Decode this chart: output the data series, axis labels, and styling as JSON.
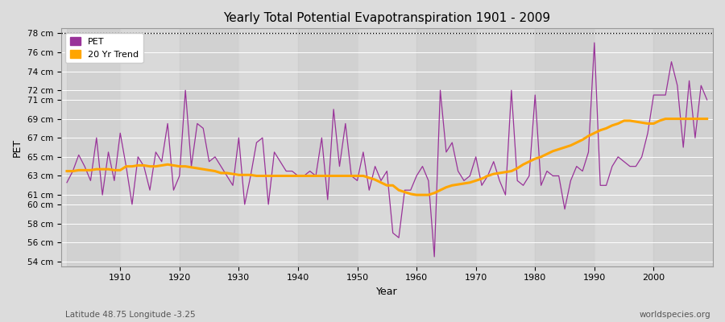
{
  "title": "Yearly Total Potential Evapotranspiration 1901 - 2009",
  "xlabel": "Year",
  "ylabel": "PET",
  "footer_left": "Latitude 48.75 Longitude -3.25",
  "footer_right": "worldspecies.org",
  "ylim": [
    53.5,
    78.5
  ],
  "pet_color": "#993399",
  "trend_color": "#FFA500",
  "bg_color": "#DCDCDC",
  "plot_bg": "#DCDCDC",
  "dotted_line_y": 78,
  "years": [
    1901,
    1902,
    1903,
    1904,
    1905,
    1906,
    1907,
    1908,
    1909,
    1910,
    1911,
    1912,
    1913,
    1914,
    1915,
    1916,
    1917,
    1918,
    1919,
    1920,
    1921,
    1922,
    1923,
    1924,
    1925,
    1926,
    1927,
    1928,
    1929,
    1930,
    1931,
    1932,
    1933,
    1934,
    1935,
    1936,
    1937,
    1938,
    1939,
    1940,
    1941,
    1942,
    1943,
    1944,
    1945,
    1946,
    1947,
    1948,
    1949,
    1950,
    1951,
    1952,
    1953,
    1954,
    1955,
    1956,
    1957,
    1958,
    1959,
    1960,
    1961,
    1962,
    1963,
    1964,
    1965,
    1966,
    1967,
    1968,
    1969,
    1970,
    1971,
    1972,
    1973,
    1974,
    1975,
    1976,
    1977,
    1978,
    1979,
    1980,
    1981,
    1982,
    1983,
    1984,
    1985,
    1986,
    1987,
    1988,
    1989,
    1990,
    1991,
    1992,
    1993,
    1994,
    1995,
    1996,
    1997,
    1998,
    1999,
    2000,
    2001,
    2002,
    2003,
    2004,
    2005,
    2006,
    2007,
    2008,
    2009
  ],
  "pet": [
    62.3,
    63.5,
    65.2,
    64.0,
    62.5,
    67.0,
    61.0,
    65.5,
    62.5,
    67.5,
    64.0,
    60.0,
    65.0,
    64.0,
    61.5,
    65.5,
    64.5,
    68.5,
    61.5,
    63.0,
    72.0,
    64.0,
    68.5,
    68.0,
    64.5,
    65.0,
    64.0,
    63.0,
    62.0,
    67.0,
    60.0,
    63.0,
    66.5,
    67.0,
    60.0,
    65.5,
    64.5,
    63.5,
    63.5,
    63.0,
    63.0,
    63.5,
    63.0,
    67.0,
    60.5,
    70.0,
    64.0,
    68.5,
    63.0,
    62.5,
    65.5,
    61.5,
    64.0,
    62.5,
    63.5,
    57.0,
    56.5,
    61.5,
    61.5,
    63.0,
    64.0,
    62.5,
    54.5,
    72.0,
    65.5,
    66.5,
    63.5,
    62.5,
    63.0,
    65.0,
    62.0,
    63.0,
    64.5,
    62.5,
    61.0,
    72.0,
    62.5,
    62.0,
    63.0,
    71.5,
    62.0,
    63.5,
    63.0,
    63.0,
    59.5,
    62.5,
    64.0,
    63.5,
    65.5,
    77.0,
    62.0,
    62.0,
    64.0,
    65.0,
    64.5,
    64.0,
    64.0,
    65.0,
    67.5,
    71.5,
    71.5,
    71.5,
    75.0,
    72.5,
    66.0,
    73.0,
    67.0,
    72.5,
    71.0
  ],
  "trend": [
    63.5,
    63.5,
    63.6,
    63.6,
    63.6,
    63.7,
    63.7,
    63.7,
    63.6,
    63.6,
    64.0,
    64.0,
    64.1,
    64.1,
    64.0,
    64.0,
    64.1,
    64.2,
    64.1,
    64.0,
    64.0,
    63.9,
    63.8,
    63.7,
    63.6,
    63.5,
    63.3,
    63.3,
    63.2,
    63.1,
    63.1,
    63.1,
    63.0,
    63.0,
    63.0,
    63.0,
    63.0,
    63.0,
    63.0,
    63.0,
    63.0,
    63.0,
    63.0,
    63.0,
    63.0,
    63.0,
    63.0,
    63.0,
    63.0,
    63.0,
    63.0,
    62.8,
    62.6,
    62.3,
    62.0,
    62.0,
    61.5,
    61.3,
    61.1,
    61.0,
    61.0,
    61.0,
    61.2,
    61.5,
    61.8,
    62.0,
    62.1,
    62.2,
    62.3,
    62.5,
    62.7,
    63.0,
    63.2,
    63.3,
    63.4,
    63.5,
    63.8,
    64.2,
    64.5,
    64.8,
    65.0,
    65.3,
    65.6,
    65.8,
    66.0,
    66.2,
    66.5,
    66.8,
    67.2,
    67.5,
    67.8,
    68.0,
    68.3,
    68.5,
    68.8,
    68.8,
    68.7,
    68.6,
    68.5,
    68.5,
    68.8,
    69.0,
    69.0,
    69.0,
    69.0,
    69.0,
    69.0,
    69.0,
    69.0
  ],
  "ytick_values": [
    54,
    56,
    58,
    60,
    61,
    63,
    65,
    67,
    69,
    71,
    72,
    74,
    76,
    78
  ],
  "ytick_labels": [
    "54 cm",
    "56 cm",
    "58 cm",
    "60 cm",
    "61 cm",
    "63 cm",
    "65 cm",
    "67 cm",
    "69 cm",
    "71 cm",
    "72 cm",
    "74 cm",
    "76 cm",
    "78 cm"
  ],
  "xtick_vals": [
    1910,
    1920,
    1930,
    1940,
    1950,
    1960,
    1970,
    1980,
    1990,
    2000
  ]
}
